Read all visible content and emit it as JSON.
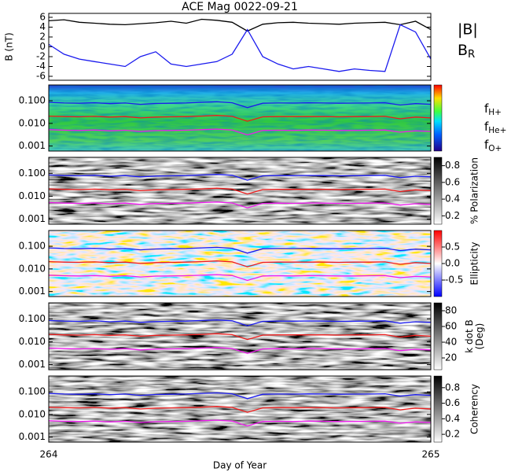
{
  "chart_data": [
    {
      "type": "line",
      "title": "ACE Mag 0022-09-21",
      "ylabel": "B (nT)",
      "x": [
        264,
        264.04,
        264.08,
        264.12,
        264.16,
        264.2,
        264.24,
        264.28,
        264.32,
        264.36,
        264.4,
        264.44,
        264.48,
        264.52,
        264.56,
        264.6,
        264.64,
        264.68,
        264.72,
        264.76,
        264.8,
        264.84,
        264.88,
        264.92,
        264.96,
        265
      ],
      "xlim": [
        264,
        265
      ],
      "ylim": [
        -6.8,
        6.8
      ],
      "yticks": [
        -6,
        -4,
        -2,
        0,
        2,
        4,
        6
      ],
      "series": [
        {
          "name": "|B|",
          "color": "#000000",
          "values": [
            5.3,
            5.5,
            5.0,
            4.8,
            4.6,
            4.5,
            4.7,
            4.9,
            5.2,
            4.8,
            5.6,
            5.4,
            5.0,
            3.2,
            4.6,
            4.9,
            5.0,
            4.8,
            4.7,
            4.6,
            4.8,
            4.9,
            5.0,
            4.5,
            5.2,
            3.5
          ]
        },
        {
          "name": "BR",
          "color": "#1a1aee",
          "values": [
            0.5,
            -1.5,
            -2.5,
            -3.0,
            -3.5,
            -4.0,
            -2.0,
            -1.0,
            -3.5,
            -4.0,
            -3.5,
            -3.0,
            -1.5,
            3.5,
            -2.0,
            -3.5,
            -4.5,
            -4.0,
            -4.5,
            -5.0,
            -4.5,
            -4.8,
            -5.0,
            4.5,
            3.0,
            -2.5
          ]
        }
      ]
    },
    {
      "type": "spectrogram",
      "spectrum": "rainbow",
      "log_y": true,
      "x": [
        264,
        264.04,
        264.08,
        264.12,
        264.16,
        264.2,
        264.24,
        264.28,
        264.32,
        264.36,
        264.4,
        264.44,
        264.48,
        264.52,
        264.56,
        264.6,
        264.64,
        264.68,
        264.72,
        264.76,
        264.8,
        264.84,
        264.88,
        264.92,
        264.96,
        265
      ],
      "xlim": [
        264,
        265
      ],
      "ylim": [
        0.0006,
        0.5
      ],
      "yticks": [
        0.001,
        {
          "value": 0.01,
          "label": "0.010"
        },
        {
          "value": 0.1,
          "label": "0.100"
        }
      ],
      "series": [
        {
          "name": "fH+",
          "color": "#1a1aee",
          "values": [
            0.085,
            0.08,
            0.078,
            0.082,
            0.075,
            0.08,
            0.07,
            0.076,
            0.078,
            0.08,
            0.085,
            0.09,
            0.082,
            0.05,
            0.078,
            0.08,
            0.079,
            0.081,
            0.08,
            0.078,
            0.079,
            0.08,
            0.082,
            0.065,
            0.075,
            0.07
          ]
        },
        {
          "name": "fHe+",
          "color": "#ee1a1a",
          "values": [
            0.021,
            0.02,
            0.0195,
            0.0205,
            0.019,
            0.02,
            0.0175,
            0.019,
            0.0195,
            0.02,
            0.021,
            0.0225,
            0.0205,
            0.0125,
            0.0195,
            0.02,
            0.02,
            0.02,
            0.02,
            0.0195,
            0.02,
            0.02,
            0.0205,
            0.016,
            0.019,
            0.0175
          ]
        },
        {
          "name": "fO+",
          "color": "#ee1aee",
          "values": [
            0.0053,
            0.005,
            0.0049,
            0.0051,
            0.0047,
            0.005,
            0.0044,
            0.0048,
            0.0049,
            0.005,
            0.0053,
            0.0056,
            0.0051,
            0.0031,
            0.0049,
            0.005,
            0.0049,
            0.0051,
            0.005,
            0.0049,
            0.0049,
            0.005,
            0.0051,
            0.0041,
            0.0047,
            0.0044
          ]
        }
      ]
    },
    {
      "type": "spectrogram",
      "spectrum": "gray",
      "log_y": true,
      "colorbar_label": [
        "% Polarization"
      ],
      "clim": [
        0.1,
        0.9
      ],
      "cticks": [
        0.2,
        0.4,
        0.6,
        0.8
      ],
      "x": [
        264,
        264.04,
        264.08,
        264.12,
        264.16,
        264.2,
        264.24,
        264.28,
        264.32,
        264.36,
        264.4,
        264.44,
        264.48,
        264.52,
        264.56,
        264.6,
        264.64,
        264.68,
        264.72,
        264.76,
        264.8,
        264.84,
        264.88,
        264.92,
        264.96,
        265
      ],
      "xlim": [
        264,
        265
      ],
      "ylim": [
        0.0006,
        0.5
      ],
      "yticks": [
        0.001,
        {
          "value": 0.01,
          "label": "0.010"
        },
        {
          "value": 0.1,
          "label": "0.100"
        }
      ],
      "series": [
        {
          "color": "#1a1aee",
          "values": [
            0.085,
            0.08,
            0.078,
            0.082,
            0.075,
            0.08,
            0.07,
            0.076,
            0.078,
            0.08,
            0.085,
            0.09,
            0.082,
            0.05,
            0.078,
            0.08,
            0.079,
            0.081,
            0.08,
            0.078,
            0.079,
            0.08,
            0.082,
            0.065,
            0.075,
            0.07
          ]
        },
        {
          "color": "#ee1a1a",
          "values": [
            0.021,
            0.02,
            0.0195,
            0.0205,
            0.019,
            0.02,
            0.0175,
            0.019,
            0.0195,
            0.02,
            0.021,
            0.0225,
            0.0205,
            0.0125,
            0.0195,
            0.02,
            0.02,
            0.02,
            0.02,
            0.0195,
            0.02,
            0.02,
            0.0205,
            0.016,
            0.019,
            0.0175
          ]
        },
        {
          "color": "#ee1aee",
          "values": [
            0.0053,
            0.005,
            0.0049,
            0.0051,
            0.0047,
            0.005,
            0.0044,
            0.0048,
            0.0049,
            0.005,
            0.0053,
            0.0056,
            0.0051,
            0.0031,
            0.0049,
            0.005,
            0.0049,
            0.0051,
            0.005,
            0.0049,
            0.0049,
            0.005,
            0.0051,
            0.0041,
            0.0047,
            0.0044
          ]
        }
      ]
    },
    {
      "type": "spectrogram",
      "spectrum": "diverging",
      "log_y": true,
      "colorbar_label": [
        "Ellipticity"
      ],
      "clim": [
        -1,
        1
      ],
      "cticks": [
        -0.5,
        {
          "value": 0,
          "label": "0.0"
        },
        0.5
      ],
      "x": [
        264,
        264.04,
        264.08,
        264.12,
        264.16,
        264.2,
        264.24,
        264.28,
        264.32,
        264.36,
        264.4,
        264.44,
        264.48,
        264.52,
        264.56,
        264.6,
        264.64,
        264.68,
        264.72,
        264.76,
        264.8,
        264.84,
        264.88,
        264.92,
        264.96,
        265
      ],
      "xlim": [
        264,
        265
      ],
      "ylim": [
        0.0006,
        0.5
      ],
      "yticks": [
        0.001,
        {
          "value": 0.01,
          "label": "0.010"
        },
        {
          "value": 0.1,
          "label": "0.100"
        }
      ],
      "series": [
        {
          "color": "#1a1aee",
          "values": [
            0.085,
            0.08,
            0.078,
            0.082,
            0.075,
            0.08,
            0.07,
            0.076,
            0.078,
            0.08,
            0.085,
            0.09,
            0.082,
            0.05,
            0.078,
            0.08,
            0.079,
            0.081,
            0.08,
            0.078,
            0.079,
            0.08,
            0.082,
            0.065,
            0.075,
            0.07
          ]
        },
        {
          "color": "#ee1a1a",
          "values": [
            0.021,
            0.02,
            0.0195,
            0.0205,
            0.019,
            0.02,
            0.0175,
            0.019,
            0.0195,
            0.02,
            0.021,
            0.0225,
            0.0205,
            0.0125,
            0.0195,
            0.02,
            0.02,
            0.02,
            0.02,
            0.0195,
            0.02,
            0.02,
            0.0205,
            0.016,
            0.019,
            0.0175
          ]
        },
        {
          "color": "#ee1aee",
          "values": [
            0.0053,
            0.005,
            0.0049,
            0.0051,
            0.0047,
            0.005,
            0.0044,
            0.0048,
            0.0049,
            0.005,
            0.0053,
            0.0056,
            0.0051,
            0.0031,
            0.0049,
            0.005,
            0.0049,
            0.0051,
            0.005,
            0.0049,
            0.0049,
            0.005,
            0.0051,
            0.0041,
            0.0047,
            0.0044
          ]
        }
      ]
    },
    {
      "type": "spectrogram",
      "spectrum": "gray",
      "log_y": true,
      "colorbar_label": [
        "k dot B",
        "(Deg)"
      ],
      "clim": [
        5,
        90
      ],
      "cticks": [
        20,
        40,
        60,
        80
      ],
      "x": [
        264,
        264.04,
        264.08,
        264.12,
        264.16,
        264.2,
        264.24,
        264.28,
        264.32,
        264.36,
        264.4,
        264.44,
        264.48,
        264.52,
        264.56,
        264.6,
        264.64,
        264.68,
        264.72,
        264.76,
        264.8,
        264.84,
        264.88,
        264.92,
        264.96,
        265
      ],
      "xlim": [
        264,
        265
      ],
      "ylim": [
        0.0006,
        0.5
      ],
      "yticks": [
        0.001,
        {
          "value": 0.01,
          "label": "0.010"
        },
        {
          "value": 0.1,
          "label": "0.100"
        }
      ],
      "series": [
        {
          "color": "#1a1aee",
          "values": [
            0.085,
            0.08,
            0.078,
            0.082,
            0.075,
            0.08,
            0.07,
            0.076,
            0.078,
            0.08,
            0.085,
            0.09,
            0.082,
            0.05,
            0.078,
            0.08,
            0.079,
            0.081,
            0.08,
            0.078,
            0.079,
            0.08,
            0.082,
            0.065,
            0.075,
            0.07
          ]
        },
        {
          "color": "#ee1a1a",
          "values": [
            0.021,
            0.02,
            0.0195,
            0.0205,
            0.019,
            0.02,
            0.0175,
            0.019,
            0.0195,
            0.02,
            0.021,
            0.0225,
            0.0205,
            0.0125,
            0.0195,
            0.02,
            0.02,
            0.02,
            0.02,
            0.0195,
            0.02,
            0.02,
            0.0205,
            0.016,
            0.019,
            0.0175
          ]
        },
        {
          "color": "#ee1aee",
          "values": [
            0.0053,
            0.005,
            0.0049,
            0.0051,
            0.0047,
            0.005,
            0.0044,
            0.0048,
            0.0049,
            0.005,
            0.0053,
            0.0056,
            0.0051,
            0.0031,
            0.0049,
            0.005,
            0.0049,
            0.0051,
            0.005,
            0.0049,
            0.0049,
            0.005,
            0.0051,
            0.0041,
            0.0047,
            0.0044
          ]
        }
      ]
    },
    {
      "type": "spectrogram",
      "spectrum": "gray",
      "log_y": true,
      "colorbar_label": [
        "Coherency"
      ],
      "clim": [
        0.1,
        0.95
      ],
      "cticks": [
        0.2,
        0.4,
        0.6,
        0.8
      ],
      "xlabel": "Day of Year",
      "xticks": [
        264,
        265
      ],
      "x": [
        264,
        264.04,
        264.08,
        264.12,
        264.16,
        264.2,
        264.24,
        264.28,
        264.32,
        264.36,
        264.4,
        264.44,
        264.48,
        264.52,
        264.56,
        264.6,
        264.64,
        264.68,
        264.72,
        264.76,
        264.8,
        264.84,
        264.88,
        264.92,
        264.96,
        265
      ],
      "xlim": [
        264,
        265
      ],
      "ylim": [
        0.0006,
        0.5
      ],
      "yticks": [
        0.001,
        {
          "value": 0.01,
          "label": "0.010"
        },
        {
          "value": 0.1,
          "label": "0.100"
        }
      ],
      "series": [
        {
          "color": "#1a1aee",
          "values": [
            0.085,
            0.08,
            0.078,
            0.082,
            0.075,
            0.08,
            0.07,
            0.076,
            0.078,
            0.08,
            0.085,
            0.09,
            0.082,
            0.05,
            0.078,
            0.08,
            0.079,
            0.081,
            0.08,
            0.078,
            0.079,
            0.08,
            0.082,
            0.065,
            0.075,
            0.07
          ]
        },
        {
          "color": "#ee1a1a",
          "values": [
            0.021,
            0.02,
            0.0195,
            0.0205,
            0.019,
            0.02,
            0.0175,
            0.019,
            0.0195,
            0.02,
            0.021,
            0.0225,
            0.0205,
            0.0125,
            0.0195,
            0.02,
            0.02,
            0.02,
            0.02,
            0.0195,
            0.02,
            0.02,
            0.0205,
            0.016,
            0.019,
            0.0175
          ]
        },
        {
          "color": "#ee1aee",
          "values": [
            0.0053,
            0.005,
            0.0049,
            0.0051,
            0.0047,
            0.005,
            0.0044,
            0.0048,
            0.0049,
            0.005,
            0.0053,
            0.0056,
            0.0051,
            0.0031,
            0.0049,
            0.005,
            0.0049,
            0.0051,
            0.005,
            0.0049,
            0.0049,
            0.005,
            0.0051,
            0.0041,
            0.0047,
            0.0044
          ]
        }
      ]
    }
  ]
}
